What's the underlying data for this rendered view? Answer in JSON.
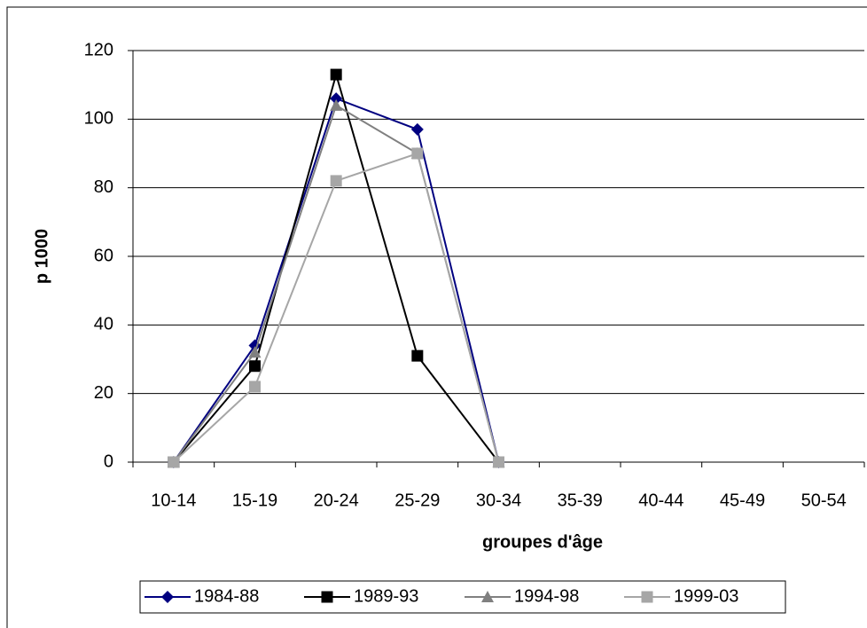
{
  "chart_data": {
    "type": "line",
    "x_label": "groupes d'âge",
    "y_label": "p 1000",
    "categories": [
      "10-14",
      "15-19",
      "20-24",
      "25-29",
      "30-34",
      "35-39",
      "40-44",
      "45-49",
      "50-54"
    ],
    "series": [
      {
        "name": "1984-88",
        "color": "#000080",
        "marker": "diamond",
        "values": [
          0,
          34,
          106,
          97,
          0,
          null,
          null,
          null,
          null
        ]
      },
      {
        "name": "1989-93",
        "color": "#000000",
        "marker": "square",
        "values": [
          0,
          28,
          113,
          31,
          0,
          null,
          null,
          null,
          null
        ]
      },
      {
        "name": "1994-98",
        "color": "#808080",
        "marker": "triangle",
        "values": [
          0,
          32,
          104,
          90,
          0,
          null,
          null,
          null,
          null
        ]
      },
      {
        "name": "1999-03",
        "color": "#a6a6a6",
        "marker": "square",
        "values": [
          0,
          22,
          82,
          90,
          0,
          null,
          null,
          null,
          null
        ]
      }
    ],
    "ylim": [
      0,
      120
    ],
    "yticks": [
      0,
      20,
      40,
      60,
      80,
      100,
      120
    ],
    "grid": true,
    "legend": "bottom"
  }
}
